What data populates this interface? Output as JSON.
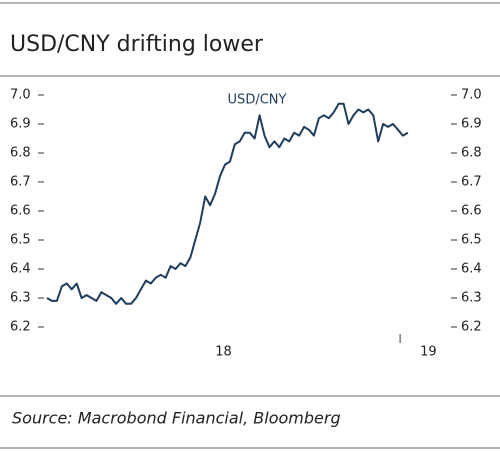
{
  "chart_data": {
    "type": "line",
    "title": "USD/CNY drifting lower",
    "source": "Source: Macrobond Financial, Bloomberg",
    "x": [
      2018,
      2018.014,
      2018.028,
      2018.042,
      2018.056,
      2018.07,
      2018.084,
      2018.098,
      2018.112,
      2018.126,
      2018.14,
      2018.154,
      2018.168,
      2018.182,
      2018.196,
      2018.21,
      2018.224,
      2018.238,
      2018.252,
      2018.266,
      2018.28,
      2018.294,
      2018.308,
      2018.322,
      2018.336,
      2018.35,
      2018.364,
      2018.378,
      2018.392,
      2018.406,
      2018.42,
      2018.434,
      2018.448,
      2018.462,
      2018.476,
      2018.49,
      2018.504,
      2018.518,
      2018.532,
      2018.546,
      2018.56,
      2018.574,
      2018.588,
      2018.602,
      2018.616,
      2018.63,
      2018.644,
      2018.658,
      2018.672,
      2018.686,
      2018.7,
      2018.714,
      2018.728,
      2018.742,
      2018.756,
      2018.77,
      2018.784,
      2018.798,
      2018.812,
      2018.826,
      2018.84,
      2018.854,
      2018.868,
      2018.882,
      2018.896,
      2018.91,
      2018.924,
      2018.938,
      2018.952,
      2018.966,
      2018.98,
      2018.994,
      2019.008,
      2019.022
    ],
    "series": [
      {
        "name": "USD/CNY",
        "color": "#1f3d5c",
        "values": [
          6.3,
          6.29,
          6.29,
          6.34,
          6.35,
          6.33,
          6.35,
          6.3,
          6.31,
          6.3,
          6.29,
          6.32,
          6.31,
          6.3,
          6.28,
          6.3,
          6.28,
          6.28,
          6.3,
          6.33,
          6.36,
          6.35,
          6.37,
          6.38,
          6.37,
          6.41,
          6.4,
          6.42,
          6.41,
          6.44,
          6.5,
          6.56,
          6.65,
          6.62,
          6.66,
          6.72,
          6.76,
          6.77,
          6.83,
          6.84,
          6.87,
          6.87,
          6.85,
          6.93,
          6.86,
          6.82,
          6.84,
          6.82,
          6.85,
          6.84,
          6.87,
          6.86,
          6.89,
          6.88,
          6.86,
          6.92,
          6.93,
          6.92,
          6.94,
          6.97,
          6.97,
          6.9,
          6.93,
          6.95,
          6.94,
          6.95,
          6.93,
          6.84,
          6.9,
          6.89,
          6.9,
          6.88,
          6.86,
          6.87
        ]
      }
    ],
    "xlim": [
      2018,
      2019.13
    ],
    "xticks": [
      {
        "value": 2018.5,
        "label": "18"
      },
      {
        "value": 2019.08,
        "label": "19"
      }
    ],
    "xtick_marks": [
      2019
    ],
    "ylim": [
      6.2,
      7.0
    ],
    "yticks": [
      6.2,
      6.3,
      6.4,
      6.5,
      6.6,
      6.7,
      6.8,
      6.9,
      {
        "value": 7,
        "label": "7.0"
      }
    ],
    "y2lim": [
      6.2,
      7.0
    ],
    "y2ticks": [
      6.2,
      6.3,
      6.4,
      6.5,
      6.6,
      6.7,
      6.8,
      6.9,
      {
        "value": 7,
        "label": "7.0"
      }
    ]
  }
}
